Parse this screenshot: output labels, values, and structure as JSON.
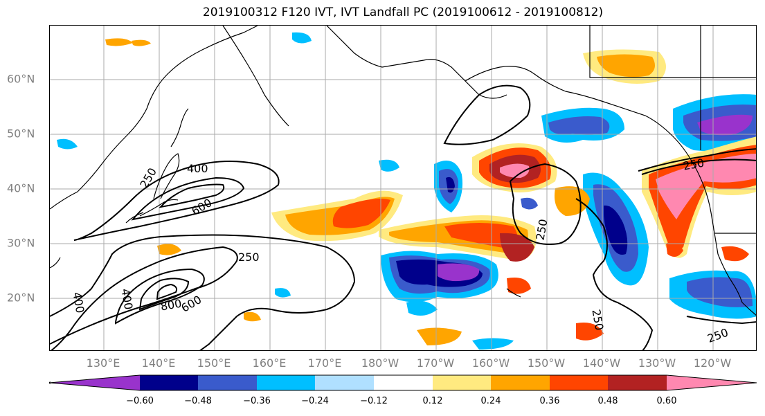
{
  "title": "2019100312 F120 IVT, IVT Landfall PC (2019100612 - 2019100812)",
  "lat_labels": [
    "60°N",
    "50°N",
    "40°N",
    "30°N",
    "20°N"
  ],
  "lon_labels": [
    "130°E",
    "140°E",
    "150°E",
    "160°E",
    "170°E",
    "180°W",
    "170°W",
    "160°W",
    "150°W",
    "140°W",
    "130°W",
    "120°W"
  ],
  "contour_labels": [
    "400",
    "250",
    "600",
    "250",
    "400",
    "400",
    "800",
    "600",
    "250",
    "250",
    "250",
    "250"
  ],
  "colorbar": {
    "ticks": [
      "−0.60",
      "−0.48",
      "−0.36",
      "−0.24",
      "−0.12",
      "0.12",
      "0.24",
      "0.36",
      "0.48",
      "0.60"
    ],
    "colors": [
      "#9933cc",
      "#00008b",
      "#3a5bcc",
      "#00bfff",
      "#b0e0ff",
      "#ffffff",
      "#ffea80",
      "#ffa500",
      "#ff4500",
      "#b22222",
      "#ff88b0"
    ]
  }
}
